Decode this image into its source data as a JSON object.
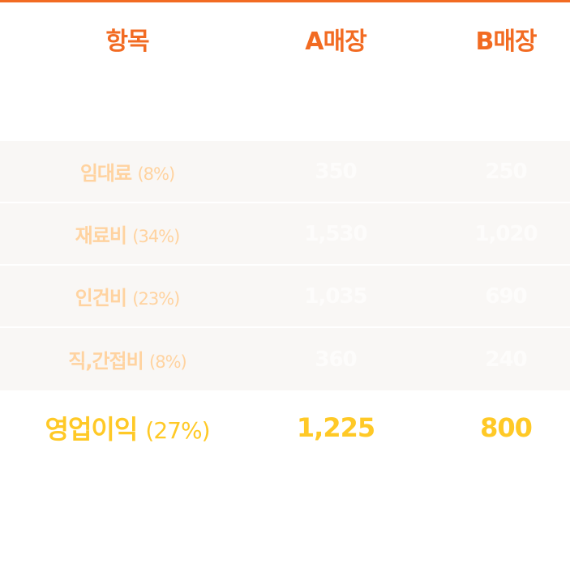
{
  "colors": {
    "header": "#f26b22",
    "row_bg": "#f9f7f5",
    "label": "#ffd3a0",
    "value": "#fdfcfb",
    "profit": "#ffc926"
  },
  "header": {
    "item": "항목",
    "store_a": "A매장",
    "store_b": "B매장"
  },
  "rows": [
    {
      "label": "임대료",
      "pct": "(8%)",
      "a": "350",
      "b": "250"
    },
    {
      "label": "재료비",
      "pct": "(34%)",
      "a": "1,530",
      "b": "1,020"
    },
    {
      "label": "인건비",
      "pct": "(23%)",
      "a": "1,035",
      "b": "690"
    },
    {
      "label": "직,간접비",
      "pct": "(8%)",
      "a": "360",
      "b": "240"
    }
  ],
  "profit": {
    "label": "영업이익",
    "pct": "(27%)",
    "a": "1,225",
    "b": "800"
  }
}
